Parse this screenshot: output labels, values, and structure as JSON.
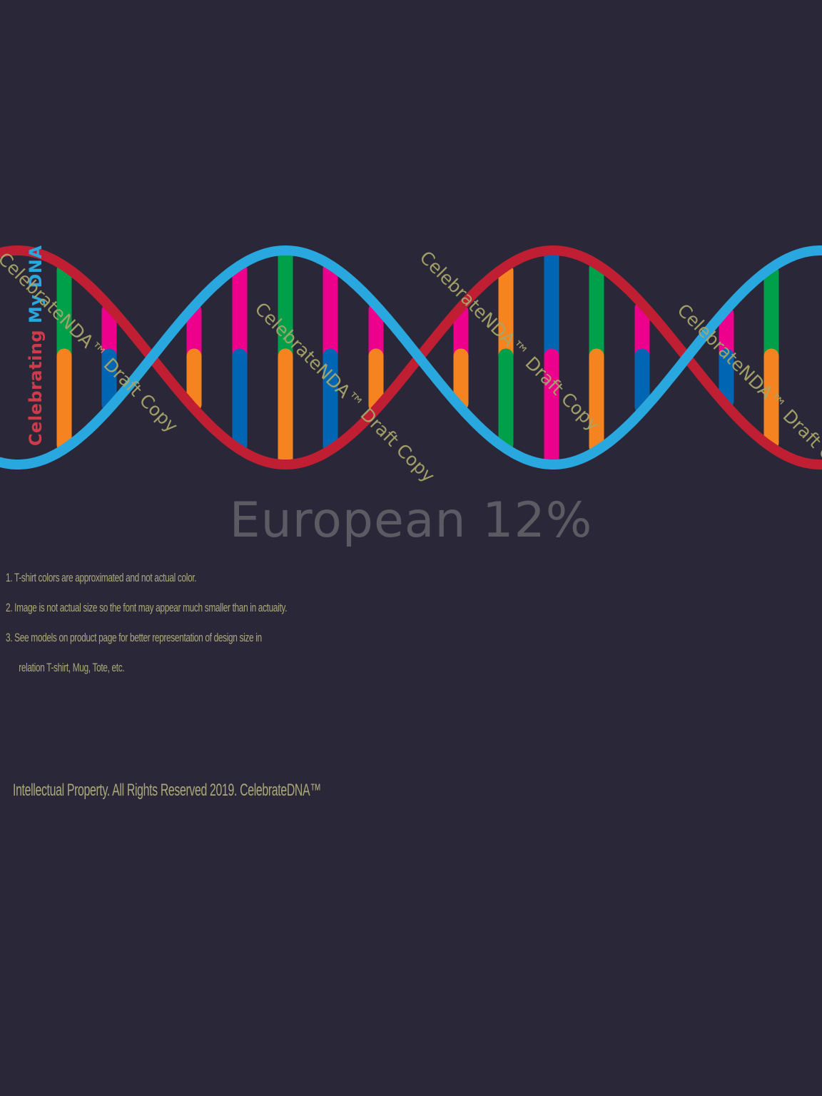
{
  "label": {
    "word1": "Celebrating",
    "word2": "My DNA",
    "word3": "",
    "word1_color": "#d03a4a",
    "word2_color": "#29a8e0"
  },
  "watermark": {
    "text": "CelebrateNDA™ Draft Copy",
    "color": "#a8a66a"
  },
  "headline": {
    "text": "European 12%",
    "color": "#5c5b63"
  },
  "notes": {
    "color": "#aaa878",
    "items": [
      "1.  T-shirt colors are approximated and not actual color.",
      "2.  Image is not actual size so the font may appear much smaller than in actuaity.",
      "3.  See models on product page for better representation of design size in",
      "relation T-shirt, Mug, Tote, etc."
    ]
  },
  "footer": {
    "text": "Intellectual Property. All Rights Reserved 2019.  CelebrateDNA™",
    "color": "#aaa878"
  },
  "colors": {
    "background": "#2a2838",
    "strand_red": "#c01e32",
    "strand_blue": "#29a8e0",
    "green": "#00a04a",
    "orange": "#f58420",
    "pink": "#ec008c",
    "blue": "#0066b3"
  }
}
